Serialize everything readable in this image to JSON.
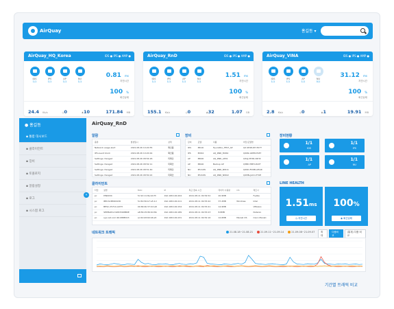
{
  "brand": {
    "logo_text": "AirQuay",
    "accent": "#1a9ae6",
    "dark": "#1a5fa8"
  },
  "header": {
    "user_name": "홍길동",
    "user_caret": "▾",
    "search_icon": "search-icon"
  },
  "sites": [
    {
      "name": "AirQuay_HQ_Korea",
      "tags": "IDS ● IPS ● AMP ●",
      "icons": [
        {
          "icon": "radar-icon",
          "label": "IDS",
          "value": "1/1",
          "dim": false
        },
        {
          "icon": "shield-icon",
          "label": "IPS",
          "value": "1/1",
          "dim": false
        },
        {
          "icon": "wifi-icon",
          "label": "AP",
          "value": "1/1",
          "dim": false
        },
        {
          "icon": "camera-icon",
          "label": "NU",
          "value": "1/1",
          "dim": false
        }
      ],
      "latency": {
        "value": "0.81",
        "unit": "ms",
        "label": "지연시간"
      },
      "health": {
        "value": "100",
        "unit": "%",
        "label": "회선상태"
      },
      "bandwidth": {
        "value": "24.4",
        "unit": "Kb/s",
        "label": "NW 트래픽"
      },
      "alerts": {
        "value": "0",
        "label": ""
      },
      "clients": {
        "value": "10",
        "label": "클라이언트"
      },
      "usage": {
        "value": "171.84",
        "unit": "MB",
        "label": "데이터사용량"
      }
    },
    {
      "name": "AirQuay_RnD",
      "tags": "IDS ● IPS ● AMP ●",
      "icons": [
        {
          "icon": "radar-icon",
          "label": "IDS",
          "value": "1/1",
          "dim": false
        },
        {
          "icon": "shield-icon",
          "label": "IPS",
          "value": "1/1",
          "dim": false
        },
        {
          "icon": "wifi-icon",
          "label": "AP",
          "value": "1/1",
          "dim": false
        },
        {
          "icon": "camera-icon",
          "label": "NU",
          "value": "1/1",
          "dim": false
        }
      ],
      "latency": {
        "value": "1.51",
        "unit": "ms",
        "label": "지연시간"
      },
      "health": {
        "value": "100",
        "unit": "%",
        "label": "회선상태"
      },
      "bandwidth": {
        "value": "155.1",
        "unit": "Kb/s",
        "label": "NW 트래픽"
      },
      "alerts": {
        "value": "0",
        "label": ""
      },
      "clients": {
        "value": "32",
        "label": "클라이언트"
      },
      "usage": {
        "value": "1.07",
        "unit": "GB",
        "label": "데이터사용량"
      }
    },
    {
      "name": "AirQuay_VINA",
      "tags": "IDS ● IPS ● AMP ●",
      "icons": [
        {
          "icon": "radar-icon",
          "label": "IDS",
          "value": "1/1",
          "dim": false
        },
        {
          "icon": "shield-icon",
          "label": "IPS",
          "value": "1/1",
          "dim": false
        },
        {
          "icon": "wifi-icon",
          "label": "AP",
          "value": "1/1",
          "dim": false
        },
        {
          "icon": "camera-icon",
          "label": "NU",
          "value": "0/1",
          "dim": true
        }
      ],
      "latency": {
        "value": "31.12",
        "unit": "ms",
        "label": "지연시간"
      },
      "health": {
        "value": "100",
        "unit": "%",
        "label": "회선상태"
      },
      "bandwidth": {
        "value": "2.8",
        "unit": "Kb/s",
        "label": "NW 트래픽"
      },
      "alerts": {
        "value": "0",
        "label": ""
      },
      "clients": {
        "value": "1",
        "label": "클라이언트"
      },
      "usage": {
        "value": "19.91",
        "unit": "MB",
        "label": "데이터사용량"
      }
    }
  ],
  "sidebar": {
    "head": "홍길동",
    "items": [
      {
        "label": "통합 대시보드",
        "icon": "dashboard-icon",
        "active": true
      },
      {
        "label": "클라이언트",
        "icon": "users-icon",
        "active": false
      },
      {
        "label": "장비",
        "icon": "device-icon",
        "active": false
      },
      {
        "label": "토폴로지",
        "icon": "topology-icon",
        "active": false
      },
      {
        "label": "알람설정",
        "icon": "bell-icon",
        "active": false
      },
      {
        "label": "로그",
        "icon": "log-icon",
        "active": false
      },
      {
        "label": "시스템 로그",
        "icon": "list-icon",
        "active": false
      }
    ],
    "collapse": "«"
  },
  "main": {
    "title": "AirQuay_RnD",
    "alarms": {
      "title": "알람",
      "columns": [
        "종류",
        "발생일시",
        "상태"
      ],
      "rows": [
        [
          "Network usage alert",
          "2021.08.26 10:20:55",
          "확인됨"
        ],
        [
          "IPS event block",
          "2021.08.26 10:20:44",
          "확인됨"
        ],
        [
          "Settings changed",
          "2021.08.26 08:54:26",
          "미확인"
        ],
        [
          "Settings changed",
          "2021.08.26 08:52:11",
          "미확인"
        ],
        [
          "Settings changed",
          "2021.08.26 08:51:40",
          "미확인"
        ],
        [
          "Settings changed",
          "2021.08.26 08:50:22",
          "미확인"
        ]
      ]
    },
    "devices": {
      "title": "장비",
      "columns": [
        "장비",
        "모델",
        "이름",
        "버전/모델명"
      ],
      "rows": [
        [
          "IDS",
          "MK16",
          "HyunWoo_TEST_AP",
          "Q2-SE48-DH-TK7T"
        ],
        [
          "IPS",
          "MX64",
          "AQ_RND_MX64",
          "Q2KN-G8H8-FAE7"
        ],
        [
          "AP",
          "MR46",
          "AQ_RND_AP01",
          "Q3AJ-VH3R-CRHX"
        ],
        [
          "AP",
          "MR46",
          "Backup AP",
          "Q3BD-T8E3-PA3F"
        ],
        [
          "NU",
          "MV12W",
          "AQ_RND_NW11",
          "Q2KD-FDDB-AHQR"
        ],
        [
          "NU",
          "MV22W",
          "AQ_RND_NW02",
          "Q2MN-JACC-PT4H"
        ]
      ]
    },
    "device_status": {
      "title": "장비현황",
      "tiles": [
        {
          "icon": "radar-icon",
          "value": "1/1",
          "label": "IDS"
        },
        {
          "icon": "shield-icon",
          "value": "1/1",
          "label": "IPS"
        },
        {
          "icon": "wifi-icon",
          "value": "1/1",
          "label": "AP"
        },
        {
          "icon": "camera-icon",
          "value": "1/1",
          "label": "NU"
        }
      ]
    },
    "clients": {
      "title": "클라이언트",
      "columns": [
        "타입",
        "설명",
        "MAC",
        "IP",
        "최근 접속 시간",
        "데이터 사용량",
        "OS",
        "제조사"
      ],
      "rows": [
        [
          "pc",
          "PIN0034",
          "5c:92:11:8e:b4:f3",
          "192.168.100.204",
          "2021.08.11 09:54:52",
          "20.9MB",
          "",
          "Fujitsu"
        ],
        [
          "pc",
          "IBM-SCPIN00136",
          "5c:84:56:b7:a5:1d",
          "192.168.100.211",
          "2021.08.11 09:53:42",
          "37.2MB",
          "Windows",
          "Intel"
        ],
        [
          "pc",
          "BESC-25710-A07H",
          "00:84:0b:57:0d:a8",
          "192.168.100.154",
          "2021.08.11 09:53:41",
          "14.9MB",
          "",
          "VMware"
        ],
        [
          "pc",
          "SEPPlatform08C5998B0E",
          "a8:56:25:89:6d:8b",
          "192.168.100.189",
          "2021.08.11 09:53:23",
          "8.8MB",
          "",
          "Nutanix"
        ],
        [
          "pc",
          "sys.nat.com.96:088E0C3",
          "ac:62:b8:60:b6:e5",
          "192.168.100.231",
          "2021.08.11 09:52:16",
          "12.6MB",
          "Meraki OS",
          "Cisco Meraki"
        ]
      ]
    },
    "line_health": {
      "title": "LINE HEALTH",
      "latency": {
        "value": "1.51",
        "unit": "ms",
        "button": "지연시간"
      },
      "health": {
        "value": "100",
        "unit": "%",
        "button": "회선상태"
      }
    },
    "traffic": {
      "title": "네트워크 트래픽",
      "legend": [
        {
          "label": "21.08.18~21.08.21",
          "color": "#1a9ae6"
        },
        {
          "label": "21.09.11~21.09.14",
          "color": "#e74c3c"
        },
        {
          "label": "21.09.08~21.09.07",
          "color": "#f39c12"
        }
      ],
      "buttons": [
        {
          "label": "최대",
          "on": false
        },
        {
          "label": "다중비교",
          "on": true
        },
        {
          "label": "(통계) 다중 비교",
          "on": false
        }
      ],
      "compare_label": "기간별 트래픽 비교"
    }
  },
  "chart_data": {
    "type": "line",
    "title": "네트워크 트래픽",
    "xlabel": "",
    "ylabel": "",
    "ylim": [
      0,
      100
    ],
    "grid": true,
    "legend": "top-center",
    "series": [
      {
        "name": "21.08.18~21.08.21",
        "color": "#1a9ae6",
        "values": [
          8,
          12,
          10,
          9,
          11,
          14,
          12,
          10,
          9,
          13,
          11,
          10,
          30,
          18,
          12,
          14,
          10,
          9,
          12,
          11,
          13,
          10,
          9,
          12,
          14,
          11,
          10,
          13,
          12,
          16,
          42,
          38,
          15,
          12,
          11,
          10,
          9,
          12,
          11,
          10,
          12,
          14,
          11,
          18,
          45,
          30,
          14,
          12,
          11,
          10,
          12,
          13,
          11,
          10,
          9,
          12,
          38,
          20,
          12,
          11,
          10,
          13,
          12,
          11,
          16,
          30,
          14,
          12,
          11,
          10,
          12,
          11,
          13,
          10,
          11,
          12,
          10,
          11
        ]
      },
      {
        "name": "21.09.11~21.09.14",
        "color": "#e74c3c",
        "values": [
          2,
          3,
          2,
          4,
          3,
          2,
          3,
          4,
          2,
          3,
          4,
          3,
          5,
          3,
          2,
          3,
          4,
          3,
          2,
          3,
          4,
          3,
          2,
          3,
          5,
          4,
          3,
          2,
          3,
          4,
          3,
          2,
          6,
          4,
          3,
          2,
          3,
          4,
          3,
          2,
          3,
          4,
          5,
          3,
          2,
          3,
          4,
          3,
          2,
          3,
          4,
          3,
          2,
          3,
          2,
          3,
          4,
          3,
          2,
          3,
          4,
          3,
          2,
          3,
          12,
          40,
          18,
          8,
          4,
          3,
          2,
          3,
          4,
          3,
          2,
          3,
          4,
          3
        ]
      },
      {
        "name": "21.09.08~21.09.07",
        "color": "#f39c12",
        "values": [
          3,
          4,
          3,
          5,
          4,
          3,
          4,
          5,
          3,
          4,
          5,
          4,
          3,
          4,
          5,
          4,
          3,
          4,
          5,
          4,
          3,
          4,
          5,
          4,
          3,
          4,
          5,
          4,
          3,
          4,
          5,
          4,
          3,
          4,
          5,
          4,
          3,
          4,
          5,
          4,
          3,
          4,
          5,
          4,
          3,
          4,
          5,
          4,
          3,
          4,
          5,
          4,
          3,
          4,
          5,
          4,
          3,
          4,
          5,
          4,
          3,
          4,
          5,
          4,
          3,
          4,
          5,
          4,
          3,
          4,
          5,
          4,
          3,
          4,
          5,
          4,
          3,
          4
        ]
      }
    ]
  }
}
